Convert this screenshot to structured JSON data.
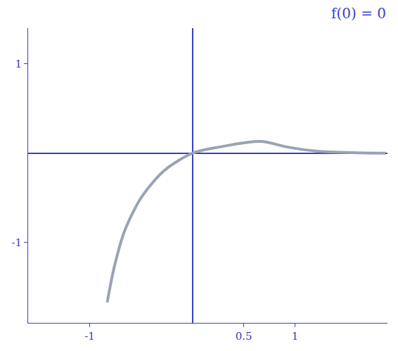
{
  "chart_data": {
    "type": "line",
    "title": "f(0) = 0",
    "x": [
      -0.83,
      -0.76,
      -0.66,
      -0.5,
      -0.28,
      0,
      0.27,
      0.53,
      0.69,
      0.92,
      1.24,
      1.88
    ],
    "values": [
      -1.67,
      -1.27,
      -0.87,
      -0.5,
      -0.2,
      0,
      0.07,
      0.12,
      0.13,
      0.07,
      0.02,
      0
    ],
    "color": "#9aa3b5",
    "xlim": [
      -1.6,
      1.9
    ],
    "xticks": [
      -1,
      0.5,
      1
    ],
    "ylim": [
      -1.9,
      1.4
    ],
    "yticks": [
      -1,
      1
    ],
    "grid": false
  }
}
